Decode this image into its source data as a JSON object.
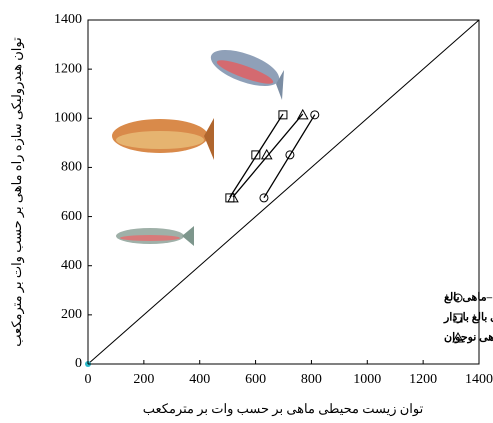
{
  "chart_data": {
    "type": "scatter",
    "x_label": "توان زیست محیطی ماهی بر حسب وات بر مترمکعب",
    "y_label": "توان هیدرولیکی سازه راه ماهی بر حسب وات بر مترمکعب",
    "xlim": [
      0,
      1400
    ],
    "ylim": [
      0,
      1400
    ],
    "xticks": [
      0,
      200,
      400,
      600,
      800,
      1000,
      1200,
      1400
    ],
    "yticks": [
      0,
      200,
      400,
      600,
      800,
      1000,
      1200,
      1400
    ],
    "legend": "lower right",
    "series": [
      {
        "name": "کلاس 1 –ماهی بالغ",
        "marker": "circle",
        "color": "#000000",
        "x": [
          630,
          723,
          812
        ],
        "values": [
          676,
          851,
          1014
        ]
      },
      {
        "name": "کلاس 2 –ماهی بالغ باردار",
        "marker": "square",
        "color": "#000000",
        "x": [
          508,
          601,
          698
        ],
        "values": [
          676,
          851,
          1014
        ]
      },
      {
        "name": "کلاس 3 –ماهی نوجوان",
        "marker": "triangle",
        "color": "#000000",
        "x": [
          519,
          640,
          769
        ],
        "values": [
          676,
          851,
          1014
        ]
      }
    ]
  }
}
